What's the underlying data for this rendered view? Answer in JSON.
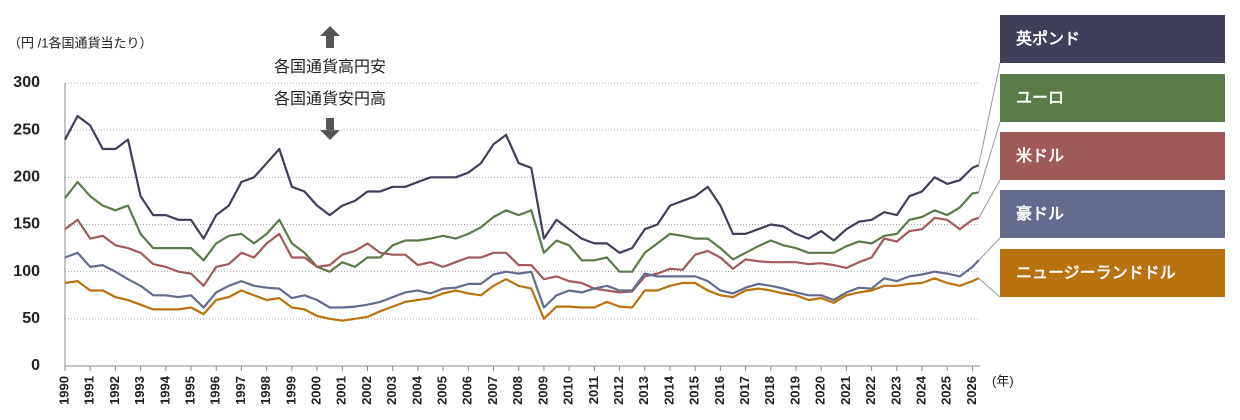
{
  "chart_data": {
    "type": "line",
    "y_axis_label": "（円 /1各国通貨当たり）",
    "annotation_up": "各国通貨高円安",
    "annotation_down": "各国通貨安円高",
    "x_axis_label": "(年)",
    "x": [
      1990,
      1990.5,
      1991,
      1991.5,
      1992,
      1992.5,
      1993,
      1993.5,
      1994,
      1994.5,
      1995,
      1995.5,
      1996,
      1996.5,
      1997,
      1997.5,
      1998,
      1998.5,
      1999,
      1999.5,
      2000,
      2000.5,
      2001,
      2001.5,
      2002,
      2002.5,
      2003,
      2003.5,
      2004,
      2004.5,
      2005,
      2005.5,
      2006,
      2006.5,
      2007,
      2007.5,
      2008,
      2008.5,
      2009,
      2009.5,
      2010,
      2010.5,
      2011,
      2011.5,
      2012,
      2012.5,
      2013,
      2013.5,
      2014,
      2014.5,
      2015,
      2015.5,
      2016,
      2016.5,
      2017,
      2017.5,
      2018,
      2018.5,
      2019,
      2019.5,
      2020,
      2020.5,
      2021,
      2021.5,
      2022,
      2022.5,
      2023,
      2023.5,
      2024,
      2024.5,
      2025,
      2025.5,
      2026,
      2026.25
    ],
    "series": [
      {
        "name": "英ポンド",
        "color": "#3f3f5a",
        "values": [
          240,
          265,
          255,
          230,
          230,
          240,
          180,
          160,
          160,
          155,
          155,
          135,
          160,
          170,
          195,
          200,
          215,
          230,
          190,
          185,
          170,
          160,
          170,
          175,
          185,
          185,
          190,
          190,
          195,
          200,
          200,
          200,
          205,
          215,
          235,
          245,
          215,
          210,
          135,
          155,
          145,
          135,
          130,
          130,
          120,
          125,
          145,
          150,
          170,
          175,
          180,
          190,
          170,
          140,
          140,
          145,
          150,
          148,
          140,
          135,
          143,
          133,
          145,
          153,
          155,
          163,
          160,
          180,
          185,
          200,
          193,
          197,
          210,
          213
        ]
      },
      {
        "name": "ユーロ",
        "color": "#5a7a4a",
        "values": [
          178,
          195,
          180,
          170,
          165,
          170,
          140,
          125,
          125,
          125,
          125,
          112,
          130,
          138,
          140,
          130,
          140,
          155,
          130,
          120,
          105,
          100,
          110,
          105,
          115,
          115,
          128,
          133,
          133,
          135,
          138,
          135,
          140,
          147,
          158,
          165,
          160,
          165,
          120,
          133,
          128,
          112,
          112,
          115,
          100,
          100,
          120,
          130,
          140,
          138,
          135,
          135,
          125,
          113,
          120,
          127,
          133,
          128,
          125,
          120,
          120,
          120,
          127,
          132,
          130,
          138,
          140,
          155,
          158,
          165,
          160,
          168,
          183,
          184
        ]
      },
      {
        "name": "米ドル",
        "color": "#a05a5a",
        "values": [
          145,
          155,
          135,
          138,
          128,
          125,
          120,
          108,
          105,
          100,
          98,
          85,
          105,
          108,
          120,
          115,
          130,
          140,
          115,
          115,
          105,
          107,
          118,
          122,
          130,
          120,
          118,
          118,
          107,
          110,
          105,
          110,
          115,
          115,
          120,
          120,
          107,
          107,
          92,
          95,
          90,
          88,
          82,
          80,
          78,
          79,
          95,
          98,
          103,
          102,
          118,
          122,
          115,
          103,
          113,
          111,
          110,
          110,
          110,
          108,
          109,
          107,
          104,
          110,
          115,
          135,
          132,
          143,
          145,
          157,
          155,
          145,
          155,
          157
        ]
      },
      {
        "name": "豪ドル",
        "color": "#636c8c",
        "values": [
          115,
          120,
          105,
          107,
          100,
          92,
          85,
          75,
          75,
          73,
          75,
          62,
          78,
          85,
          90,
          85,
          83,
          82,
          72,
          75,
          70,
          62,
          62,
          63,
          65,
          68,
          73,
          78,
          80,
          77,
          82,
          83,
          87,
          87,
          97,
          100,
          98,
          100,
          62,
          75,
          80,
          78,
          82,
          85,
          80,
          80,
          98,
          95,
          95,
          95,
          95,
          90,
          80,
          77,
          83,
          87,
          85,
          82,
          78,
          75,
          75,
          70,
          78,
          83,
          82,
          93,
          90,
          95,
          97,
          100,
          98,
          95,
          105,
          112
        ]
      },
      {
        "name": "ニュージーランドドル",
        "color": "#b8720f",
        "values": [
          88,
          90,
          80,
          80,
          73,
          70,
          65,
          60,
          60,
          60,
          62,
          55,
          70,
          73,
          80,
          75,
          70,
          72,
          62,
          60,
          53,
          50,
          48,
          50,
          52,
          58,
          63,
          68,
          70,
          72,
          77,
          80,
          77,
          75,
          85,
          92,
          85,
          82,
          50,
          63,
          63,
          62,
          62,
          68,
          63,
          62,
          80,
          80,
          85,
          88,
          88,
          80,
          75,
          73,
          80,
          82,
          80,
          77,
          75,
          70,
          72,
          67,
          75,
          78,
          80,
          85,
          85,
          87,
          88,
          93,
          88,
          85,
          90,
          93
        ]
      }
    ],
    "xlim": [
      1990,
      2026.3
    ],
    "xticks": [
      1990,
      1991,
      1992,
      1993,
      1994,
      1995,
      1996,
      1997,
      1998,
      1999,
      2000,
      2001,
      2002,
      2003,
      2004,
      2005,
      2006,
      2007,
      2008,
      2009,
      2010,
      2011,
      2012,
      2013,
      2014,
      2015,
      2016,
      2017,
      2018,
      2019,
      2020,
      2021,
      2022,
      2023,
      2024,
      2025,
      2026
    ],
    "ylim": [
      0,
      300
    ],
    "yticks": [
      0,
      50,
      100,
      150,
      200,
      250,
      300
    ],
    "grid": true
  }
}
